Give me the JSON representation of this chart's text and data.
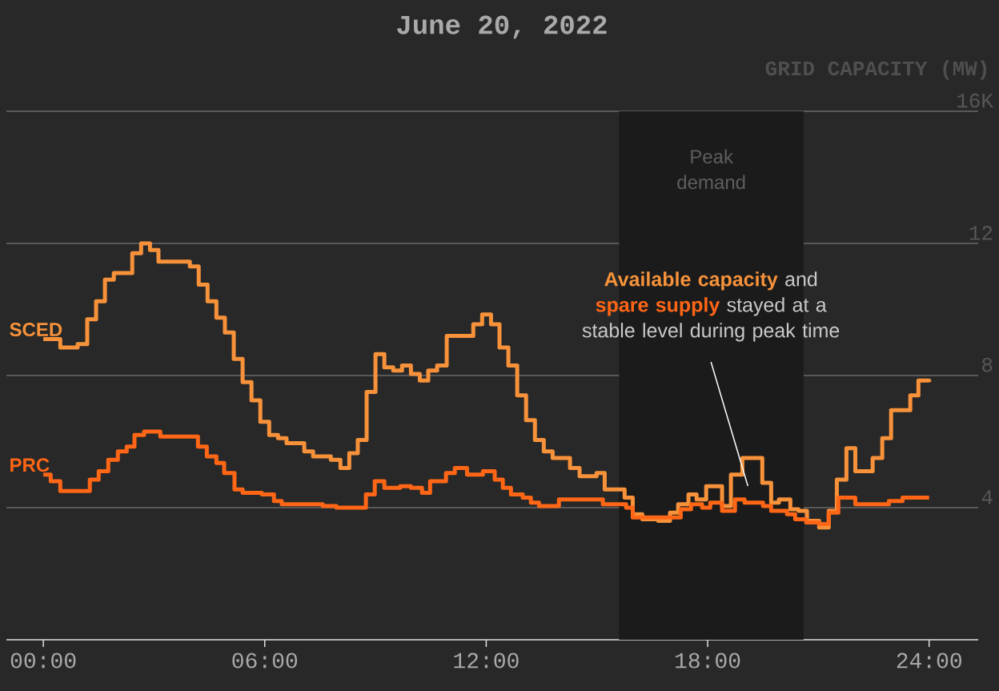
{
  "chart_data": {
    "type": "step",
    "title": "June 20, 2022",
    "ylabel": "GRID CAPACITY (MW)",
    "xlim": [
      -1,
      25.33
    ],
    "ylim": [
      0,
      16
    ],
    "xticks": [
      {
        "value": 0,
        "label": "00:00"
      },
      {
        "value": 6,
        "label": "06:00"
      },
      {
        "value": 12,
        "label": "12:00"
      },
      {
        "value": 18,
        "label": "18:00"
      },
      {
        "value": 24,
        "label": "24:00"
      }
    ],
    "yticks": [
      4,
      8,
      12,
      {
        "value": 16,
        "label": "16K"
      }
    ],
    "grid": "y",
    "bands": [
      {
        "axis": "x",
        "from": 15.6,
        "to": 20.6,
        "label": "Peak demand",
        "color": "#1b1b1b"
      }
    ],
    "annotations": [
      "**Available capacity** and **spare supply** stayed at a stable level during peak time"
    ],
    "series": [
      {
        "name": "SCED",
        "color": "#f7923a",
        "x": [
          0,
          0.46,
          0.93,
          1.19,
          1.43,
          1.67,
          1.91,
          2.41,
          2.65,
          2.89,
          3.12,
          3.97,
          4.21,
          4.45,
          4.69,
          4.92,
          5.16,
          5.4,
          5.64,
          5.88,
          6.12,
          6.36,
          6.59,
          7.07,
          7.31,
          7.79,
          8.05,
          8.29,
          8.52,
          8.76,
          9.0,
          9.24,
          9.48,
          9.72,
          9.96,
          10.2,
          10.43,
          10.67,
          10.93,
          11.65,
          11.89,
          12.13,
          12.36,
          12.6,
          12.84,
          13.08,
          13.32,
          13.56,
          13.8,
          14.27,
          14.53,
          14.99,
          15.21,
          15.75,
          15.97,
          16.23,
          16.66,
          16.98,
          17.2,
          17.48,
          17.7,
          17.96,
          18.39,
          18.63,
          18.94,
          19.48,
          19.72,
          19.93,
          20.24,
          20.46,
          20.69,
          21.02,
          21.28,
          21.5,
          21.76,
          22.0,
          22.47,
          22.73,
          22.97,
          23.49,
          23.71,
          24
        ],
        "values": [
          9.1,
          8.85,
          8.95,
          9.7,
          10.25,
          10.9,
          11.1,
          11.7,
          12.0,
          11.8,
          11.45,
          11.3,
          10.75,
          10.25,
          9.75,
          9.3,
          8.5,
          7.8,
          7.25,
          6.6,
          6.2,
          6.1,
          5.95,
          5.7,
          5.55,
          5.45,
          5.2,
          5.65,
          6.05,
          7.5,
          8.65,
          8.25,
          8.15,
          8.3,
          8.05,
          7.85,
          8.15,
          8.3,
          9.2,
          9.55,
          9.85,
          9.55,
          8.85,
          8.3,
          7.4,
          6.65,
          6.05,
          5.7,
          5.5,
          5.2,
          4.95,
          5.05,
          4.55,
          4.3,
          3.8,
          3.65,
          3.6,
          3.85,
          4.1,
          4.4,
          4.25,
          4.65,
          4.05,
          5.0,
          5.5,
          4.75,
          4.15,
          4.25,
          3.95,
          3.9,
          3.6,
          3.4,
          3.9,
          4.85,
          5.8,
          5.1,
          5.5,
          6.1,
          6.95,
          7.4,
          7.85,
          7.8
        ]
      },
      {
        "name": "PRC",
        "color": "#ff6616",
        "x": [
          0,
          0.2,
          0.46,
          1.26,
          1.5,
          1.76,
          2.02,
          2.26,
          2.47,
          2.73,
          3.17,
          4.19,
          4.43,
          4.69,
          4.9,
          5.18,
          5.4,
          5.92,
          6.25,
          6.46,
          7.57,
          7.94,
          8.74,
          8.98,
          9.24,
          9.67,
          9.96,
          10.26,
          10.48,
          10.91,
          11.15,
          11.48,
          11.91,
          12.23,
          12.45,
          12.67,
          12.99,
          13.21,
          13.43,
          13.97,
          15.16,
          15.79,
          15.97,
          17.27,
          17.55,
          17.85,
          18.07,
          18.39,
          18.74,
          19.0,
          19.5,
          19.72,
          20.15,
          20.37,
          20.67,
          21.02,
          21.28,
          21.54,
          22.0,
          22.91,
          23.28,
          24
        ],
        "values": [
          5.0,
          4.8,
          4.5,
          4.85,
          5.1,
          5.45,
          5.7,
          5.85,
          6.2,
          6.3,
          6.15,
          5.85,
          5.55,
          5.35,
          5.05,
          4.55,
          4.45,
          4.4,
          4.2,
          4.1,
          4.05,
          4.0,
          4.4,
          4.8,
          4.6,
          4.65,
          4.6,
          4.45,
          4.8,
          5.05,
          5.2,
          5.0,
          5.1,
          4.85,
          4.6,
          4.4,
          4.3,
          4.15,
          4.05,
          4.25,
          4.1,
          4.0,
          3.7,
          3.95,
          4.1,
          4.0,
          4.15,
          3.9,
          4.25,
          4.15,
          4.05,
          3.9,
          3.8,
          3.65,
          3.55,
          3.5,
          3.85,
          4.3,
          4.1,
          4.2,
          4.3,
          4.3
        ]
      }
    ]
  }
}
